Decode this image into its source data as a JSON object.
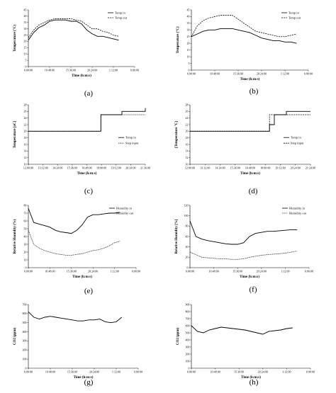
{
  "chart_data": [
    {
      "id": "a",
      "caption": "(a)",
      "type": "line",
      "xlabel": "Time (h:m:s)",
      "ylabel": "Temperature (°C)",
      "xticks": [
        "6:00:00",
        "10:48:00",
        "15:36:00",
        "20:24:00",
        "1:12:00",
        "6:00:00"
      ],
      "yticks": [
        "0",
        "5",
        "10",
        "15",
        "20",
        "25",
        "30",
        "35",
        "40",
        "45"
      ],
      "ylim": [
        0,
        45
      ],
      "legend": "top-right",
      "series": [
        {
          "name": "Temp in",
          "style": "solid",
          "x": [
            0,
            0.05,
            0.1,
            0.15,
            0.2,
            0.25,
            0.3,
            0.35,
            0.4,
            0.45,
            0.5,
            0.55,
            0.6,
            0.65,
            0.7,
            0.75,
            0.8,
            0.85
          ],
          "values": [
            21,
            27,
            31,
            33,
            36,
            37,
            37,
            37,
            36,
            36,
            34,
            29,
            26,
            24,
            24,
            23,
            22,
            21
          ]
        },
        {
          "name": "Temp out",
          "style": "dashed",
          "x": [
            0,
            0.05,
            0.1,
            0.15,
            0.2,
            0.25,
            0.3,
            0.35,
            0.4,
            0.45,
            0.5,
            0.55,
            0.6,
            0.65,
            0.7,
            0.75,
            0.8,
            0.85
          ],
          "values": [
            23,
            29,
            33,
            35,
            37,
            38,
            38,
            38,
            38,
            37,
            36,
            33,
            30,
            30,
            28,
            27,
            25,
            24
          ]
        }
      ]
    },
    {
      "id": "b",
      "caption": "(b)",
      "type": "line",
      "xlabel": "Time (h:m:s)",
      "ylabel": "Temperature (°C)",
      "xticks": [
        "6:00:00",
        "10:48:00",
        "15:36:00",
        "20:24:00",
        "1:12:00",
        "6:00:00"
      ],
      "yticks": [
        "0",
        "5",
        "10",
        "15",
        "20",
        "25",
        "30",
        "35",
        "40",
        "45"
      ],
      "ylim": [
        0,
        45
      ],
      "legend": "top-right",
      "series": [
        {
          "name": "Temp in",
          "style": "solid",
          "x": [
            0,
            0.05,
            0.1,
            0.15,
            0.2,
            0.25,
            0.3,
            0.35,
            0.4,
            0.45,
            0.5,
            0.55,
            0.6,
            0.65,
            0.7,
            0.75,
            0.8,
            0.85,
            0.9
          ],
          "values": [
            25,
            27,
            29,
            30,
            30,
            31,
            31,
            31,
            30,
            29,
            28,
            26,
            24,
            23,
            22,
            22,
            21,
            21,
            20
          ]
        },
        {
          "name": "Temp out",
          "style": "dashed",
          "x": [
            0,
            0.05,
            0.1,
            0.15,
            0.2,
            0.25,
            0.3,
            0.35,
            0.4,
            0.45,
            0.5,
            0.55,
            0.6,
            0.65,
            0.7,
            0.75,
            0.8,
            0.85,
            0.9
          ],
          "values": [
            25,
            33,
            37,
            39,
            40,
            41,
            41,
            41,
            38,
            35,
            32,
            29,
            28,
            27,
            26,
            25,
            25,
            26,
            27
          ]
        }
      ]
    },
    {
      "id": "c",
      "caption": "(c)",
      "type": "line",
      "xlabel": "Time (h:m:s)",
      "ylabel": "Temperature [oC]",
      "xticks": [
        "12:00:00",
        "13:12:00",
        "14:24:00",
        "15:36:00",
        "16:48:00",
        "18:00:00",
        "19:12:00",
        "20:24:00",
        "21:36:00"
      ],
      "yticks": [
        "10",
        "12",
        "14",
        "16",
        "18",
        "20",
        "22",
        "24",
        "26",
        "28"
      ],
      "ylim": [
        10,
        28
      ],
      "legend": "right",
      "series": [
        {
          "name": "Temp in",
          "style": "solid",
          "x": [
            0,
            0.15,
            0.3,
            0.45,
            0.55,
            0.6,
            0.62,
            0.7,
            0.8,
            0.9,
            1
          ],
          "values": [
            20,
            20,
            20,
            20,
            20,
            20,
            25,
            25,
            26,
            26,
            27
          ]
        },
        {
          "name": "Step input",
          "style": "dotted",
          "x": [
            0,
            0.55,
            0.6,
            0.62,
            1
          ],
          "values": [
            20,
            20,
            20,
            25,
            25
          ]
        }
      ]
    },
    {
      "id": "d",
      "caption": "(d)",
      "type": "line",
      "xlabel": "Time (h:m:s)",
      "ylabel": "[Temperature °C]",
      "xticks": [
        "12:00:00",
        "13:12:00",
        "14:24:00",
        "15:36:00",
        "16:48:00",
        "18:00:00",
        "19:12:00",
        "20:24:00",
        "21:24:00"
      ],
      "yticks": [
        "10",
        "12",
        "14",
        "16",
        "18",
        "20",
        "22",
        "24",
        "26",
        "28"
      ],
      "ylim": [
        10,
        28
      ],
      "legend": "right",
      "series": [
        {
          "name": "Temp in",
          "style": "solid",
          "x": [
            0,
            0.15,
            0.3,
            0.45,
            0.55,
            0.62,
            0.66,
            0.7,
            0.8,
            0.9,
            1
          ],
          "values": [
            20,
            20,
            20,
            20,
            20,
            20,
            22,
            25,
            26,
            26,
            26
          ]
        },
        {
          "name": "Step input",
          "style": "dashed",
          "x": [
            0,
            0.58,
            0.62,
            0.66,
            1
          ],
          "values": [
            20,
            20,
            20,
            25,
            25
          ]
        }
      ]
    },
    {
      "id": "e",
      "caption": "(e)",
      "type": "line",
      "xlabel": "Time (h:m:s)",
      "ylabel": "Relative Humidity (%)",
      "xticks": [
        "6:00:00",
        "10:48:00",
        "15:36:00",
        "20:24:00",
        "1:12:00",
        "6:00:00"
      ],
      "yticks": [
        "0",
        "10",
        "20",
        "30",
        "40",
        "50",
        "60",
        "70",
        "80"
      ],
      "ylim": [
        0,
        80
      ],
      "legend": "top-right",
      "series": [
        {
          "name": "Humidity in",
          "style": "solid",
          "x": [
            0,
            0.05,
            0.1,
            0.15,
            0.2,
            0.25,
            0.3,
            0.35,
            0.4,
            0.45,
            0.5,
            0.55,
            0.6,
            0.65,
            0.7,
            0.75,
            0.8,
            0.85
          ],
          "values": [
            76,
            58,
            56,
            54,
            52,
            48,
            46,
            45,
            44,
            48,
            55,
            65,
            68,
            68,
            69,
            70,
            70,
            71
          ]
        },
        {
          "name": "Humidity out",
          "style": "dotted",
          "x": [
            0,
            0.05,
            0.1,
            0.15,
            0.2,
            0.25,
            0.3,
            0.35,
            0.4,
            0.45,
            0.5,
            0.55,
            0.6,
            0.65,
            0.7,
            0.75,
            0.8,
            0.85
          ],
          "values": [
            48,
            30,
            25,
            22,
            20,
            18,
            17,
            16,
            16,
            17,
            18,
            20,
            22,
            23,
            25,
            28,
            32,
            34
          ]
        }
      ]
    },
    {
      "id": "f",
      "caption": "(f)",
      "type": "line",
      "xlabel": "Time (h:m:s)",
      "ylabel": "Relative Humidity [%]",
      "xticks": [
        "6:00:00",
        "10:48:00",
        "15:36:00",
        "20:24:00",
        "1:12:00",
        "6:00:00"
      ],
      "yticks": [
        "0",
        "20",
        "40",
        "60",
        "80",
        "100",
        "120"
      ],
      "ylim": [
        0,
        120
      ],
      "legend": "top-right",
      "series": [
        {
          "name": "Humidity in",
          "style": "solid",
          "x": [
            0,
            0.05,
            0.1,
            0.15,
            0.2,
            0.25,
            0.3,
            0.35,
            0.4,
            0.45,
            0.5,
            0.55,
            0.6,
            0.65,
            0.7,
            0.75,
            0.8,
            0.85,
            0.9
          ],
          "values": [
            90,
            60,
            55,
            52,
            50,
            48,
            46,
            45,
            45,
            48,
            60,
            66,
            68,
            70,
            70,
            71,
            72,
            73,
            73
          ]
        },
        {
          "name": "Humidity out",
          "style": "dotted",
          "x": [
            0,
            0.05,
            0.1,
            0.15,
            0.2,
            0.25,
            0.3,
            0.35,
            0.4,
            0.45,
            0.5,
            0.55,
            0.6,
            0.65,
            0.7,
            0.75,
            0.8,
            0.85,
            0.9
          ],
          "values": [
            30,
            25,
            20,
            19,
            18,
            17,
            17,
            16,
            16,
            17,
            20,
            22,
            24,
            25,
            26,
            27,
            28,
            30,
            32
          ]
        }
      ]
    },
    {
      "id": "g",
      "caption": "(g)",
      "type": "line",
      "xlabel": "Time (h:m:s)",
      "ylabel": "CO2 (ppm)",
      "xticks": [
        "6:00:00",
        "10:48:00",
        "15:36:00",
        "20:24:00",
        "1:12:00",
        "6:00:00"
      ],
      "yticks": [
        "0",
        "100",
        "200",
        "300",
        "400",
        "500",
        "600",
        "700"
      ],
      "ylim": [
        0,
        700
      ],
      "legend": "none",
      "series": [
        {
          "name": "",
          "style": "solid",
          "x": [
            0,
            0.05,
            0.1,
            0.15,
            0.2,
            0.25,
            0.3,
            0.35,
            0.4,
            0.45,
            0.5,
            0.55,
            0.6,
            0.65,
            0.7,
            0.75,
            0.8,
            0.85
          ],
          "values": [
            620,
            560,
            540,
            560,
            570,
            560,
            550,
            540,
            530,
            520,
            520,
            530,
            530,
            540,
            510,
            500,
            510,
            560
          ]
        }
      ]
    },
    {
      "id": "h",
      "caption": "(h)",
      "type": "line",
      "xlabel": "Time (h:m:s)",
      "ylabel": "CO2 (ppm)",
      "xticks": [
        "6:00:00",
        "10:48:00",
        "15:36:00",
        "20:24:00",
        "1:12:00",
        "6:00:00"
      ],
      "yticks": [
        "0",
        "100",
        "200",
        "300",
        "400",
        "500",
        "600",
        "700",
        "800",
        "900"
      ],
      "ylim": [
        0,
        900
      ],
      "legend": "none",
      "series": [
        {
          "name": "",
          "style": "solid",
          "x": [
            0,
            0.05,
            0.1,
            0.15,
            0.2,
            0.25,
            0.3,
            0.35,
            0.4,
            0.45,
            0.5,
            0.55,
            0.6,
            0.65,
            0.7,
            0.75,
            0.8,
            0.85
          ],
          "values": [
            600,
            520,
            500,
            540,
            560,
            580,
            570,
            560,
            550,
            540,
            520,
            500,
            480,
            520,
            530,
            540,
            560,
            570
          ]
        }
      ]
    }
  ]
}
